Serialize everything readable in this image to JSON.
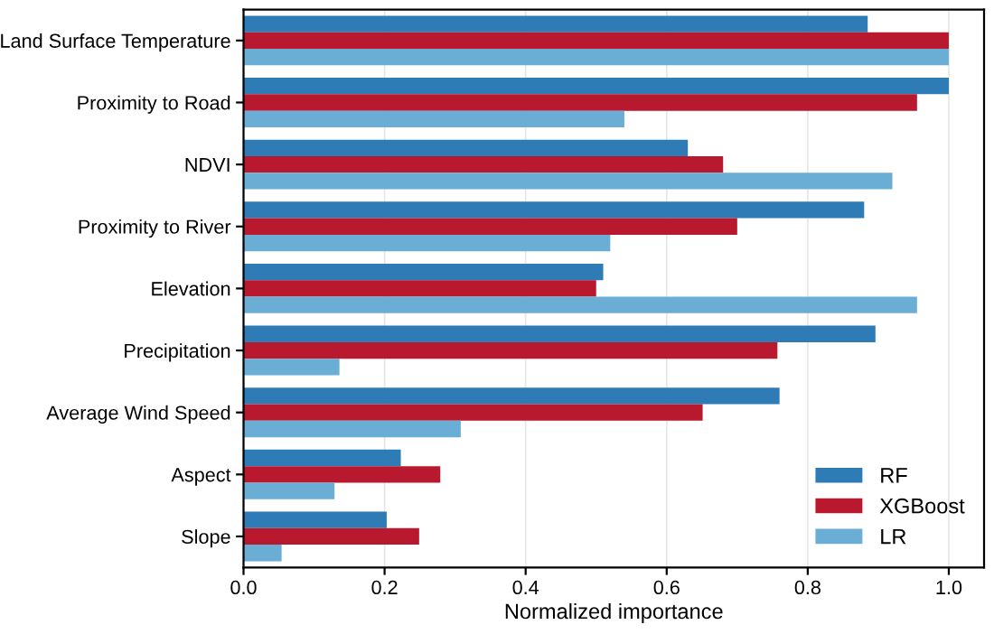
{
  "chart_data": {
    "type": "bar",
    "orientation": "horizontal",
    "xlabel": "Normalized importance",
    "categories": [
      "Land Surface Temperature",
      "Proximity to Road",
      "NDVI",
      "Proximity to River",
      "Elevation",
      "Precipitation",
      "Average Wind Speed",
      "Aspect",
      "Slope"
    ],
    "series": [
      {
        "name": "RF",
        "color": "#2e7bb6",
        "values": [
          0.885,
          1.0,
          0.63,
          0.88,
          0.51,
          0.896,
          0.76,
          0.223,
          0.203
        ]
      },
      {
        "name": "XGBoost",
        "color": "#b8192e",
        "values": [
          1.0,
          0.955,
          0.68,
          0.7,
          0.5,
          0.757,
          0.651,
          0.279,
          0.249
        ]
      },
      {
        "name": "LR",
        "color": "#6aaed6",
        "values": [
          1.0,
          0.54,
          0.92,
          0.52,
          0.955,
          0.136,
          0.308,
          0.129,
          0.054
        ]
      }
    ],
    "xlim": [
      0,
      1.05
    ],
    "xticks": [
      {
        "value": 0,
        "label": "0.0"
      },
      {
        "value": 0.2,
        "label": "0.2"
      },
      {
        "value": 0.4,
        "label": "0.4"
      },
      {
        "value": 0.6,
        "label": "0.6"
      },
      {
        "value": 0.8,
        "label": "0.8"
      },
      {
        "value": 1.0,
        "label": "1.0"
      }
    ],
    "grid": "x",
    "legend": "bottom right"
  }
}
